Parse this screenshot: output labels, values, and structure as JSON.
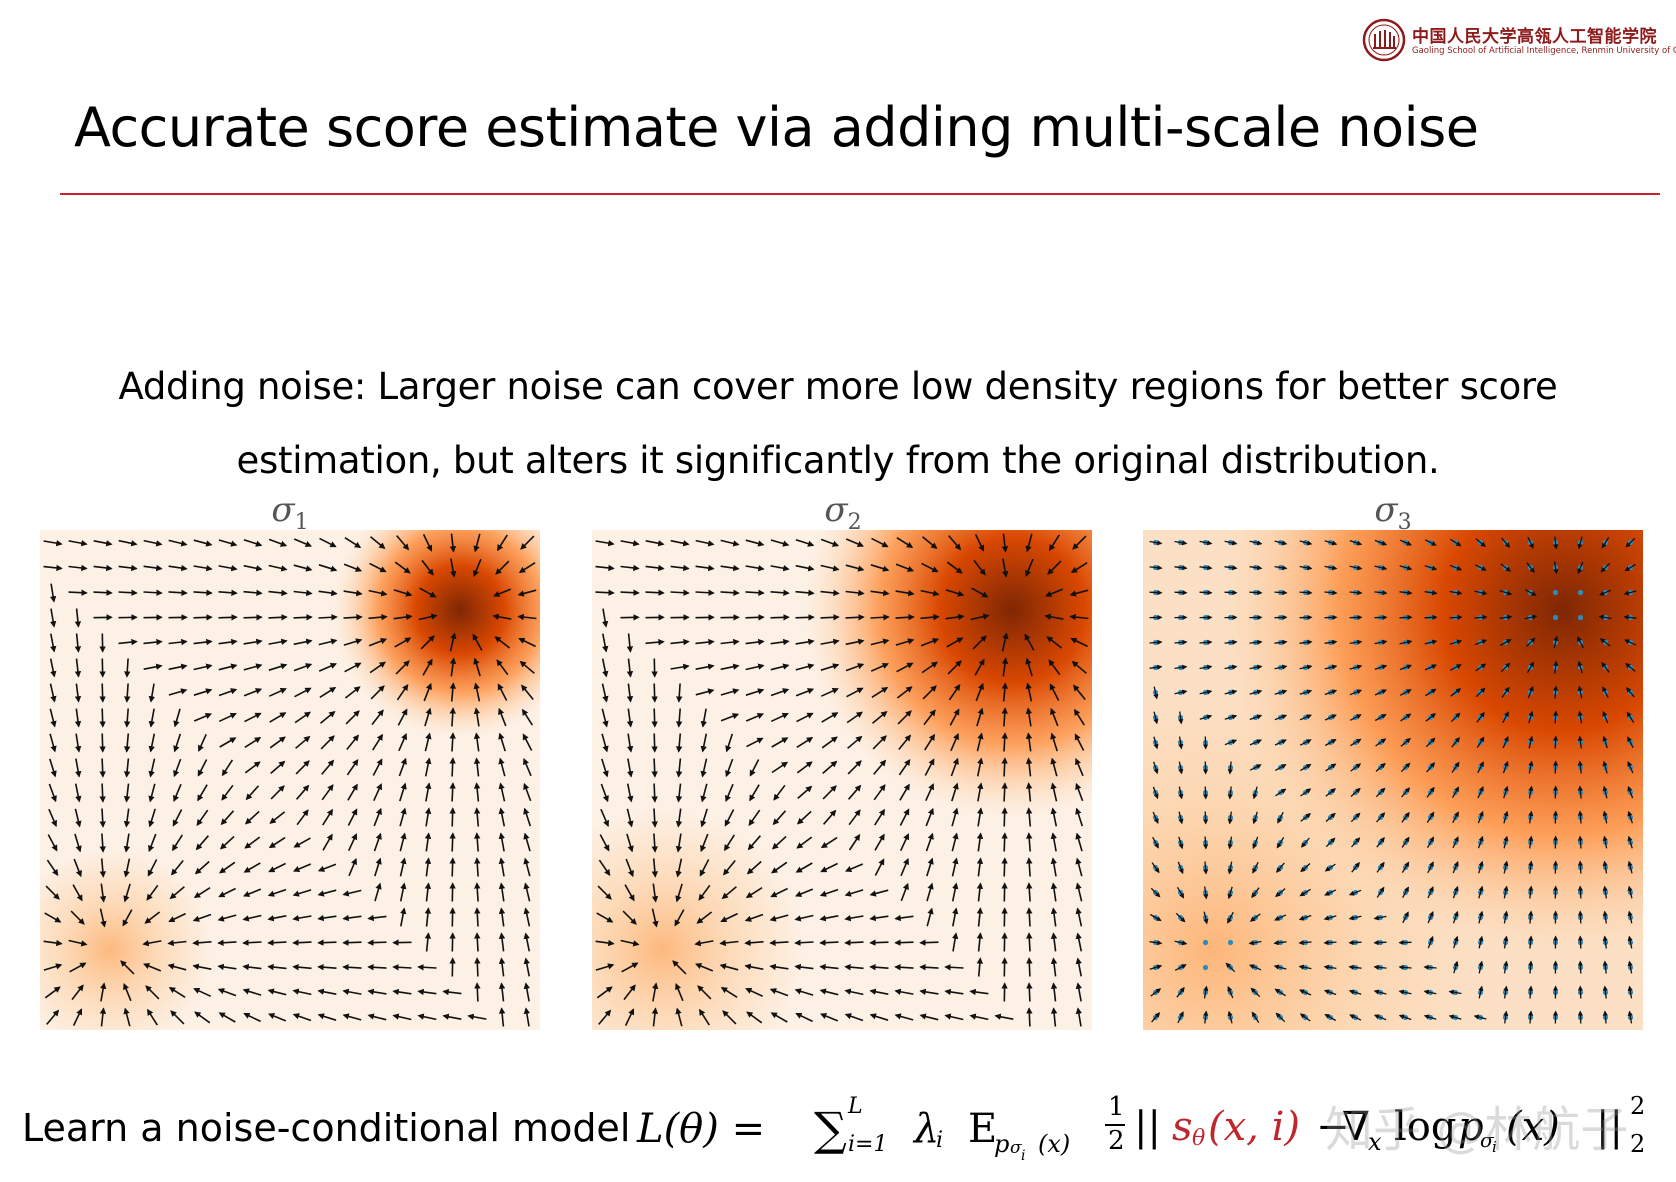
{
  "logo": {
    "name_zh": "中国人民大学高瓴人工智能学院",
    "name_en": "Gaoling School of Artificial Intelligence, Renmin University of China",
    "emblem_icon": "renmin-university-seal-icon"
  },
  "title": "Accurate score estimate via adding multi-scale noise",
  "lead": {
    "line1": "Adding noise: Larger noise can cover more low density regions for better score",
    "line2": "estimation, but alters it significantly from the original distribution."
  },
  "panels": [
    {
      "label_symbol": "σ",
      "label_sub": "1",
      "noise_level": 1,
      "show_data_points": false
    },
    {
      "label_symbol": "σ",
      "label_sub": "2",
      "noise_level": 2,
      "show_data_points": false
    },
    {
      "label_symbol": "σ",
      "label_sub": "3",
      "noise_level": 3,
      "show_data_points": true
    }
  ],
  "colors": {
    "accent_rule": "#c8202a",
    "heat_light": "#fdf0e4",
    "heat_dark": "#7f2704",
    "arrow": "#111111",
    "data_points": "#2b8cbe",
    "model_term": "#c0272d"
  },
  "formula": {
    "prefix": "Learn a noise-conditional model",
    "lhs": "L(θ) =",
    "sum": "∑",
    "sum_upper": "L",
    "sum_lower": "i=1",
    "lambda": "λ",
    "lambda_sub": "i",
    "expect": "E",
    "expect_sub_p": "p",
    "expect_sub_sigma": "σ",
    "expect_sub_i": "i",
    "expect_sub_x": "(x)",
    "frac_num": "1",
    "frac_den": "2",
    "norm_open": "||",
    "model_term": "s",
    "model_sub": "θ",
    "model_args": "(x, i)",
    "minus": "−",
    "nabla": "∇",
    "nabla_sub": "x",
    "log": "log",
    "p": "p",
    "p_sub_sigma": "σ",
    "p_sub_i": "i",
    "p_args": "(x)",
    "norm_close": "||",
    "norm_sup": "2",
    "norm_sub": "2"
  },
  "watermark": "知乎 @林航子"
}
